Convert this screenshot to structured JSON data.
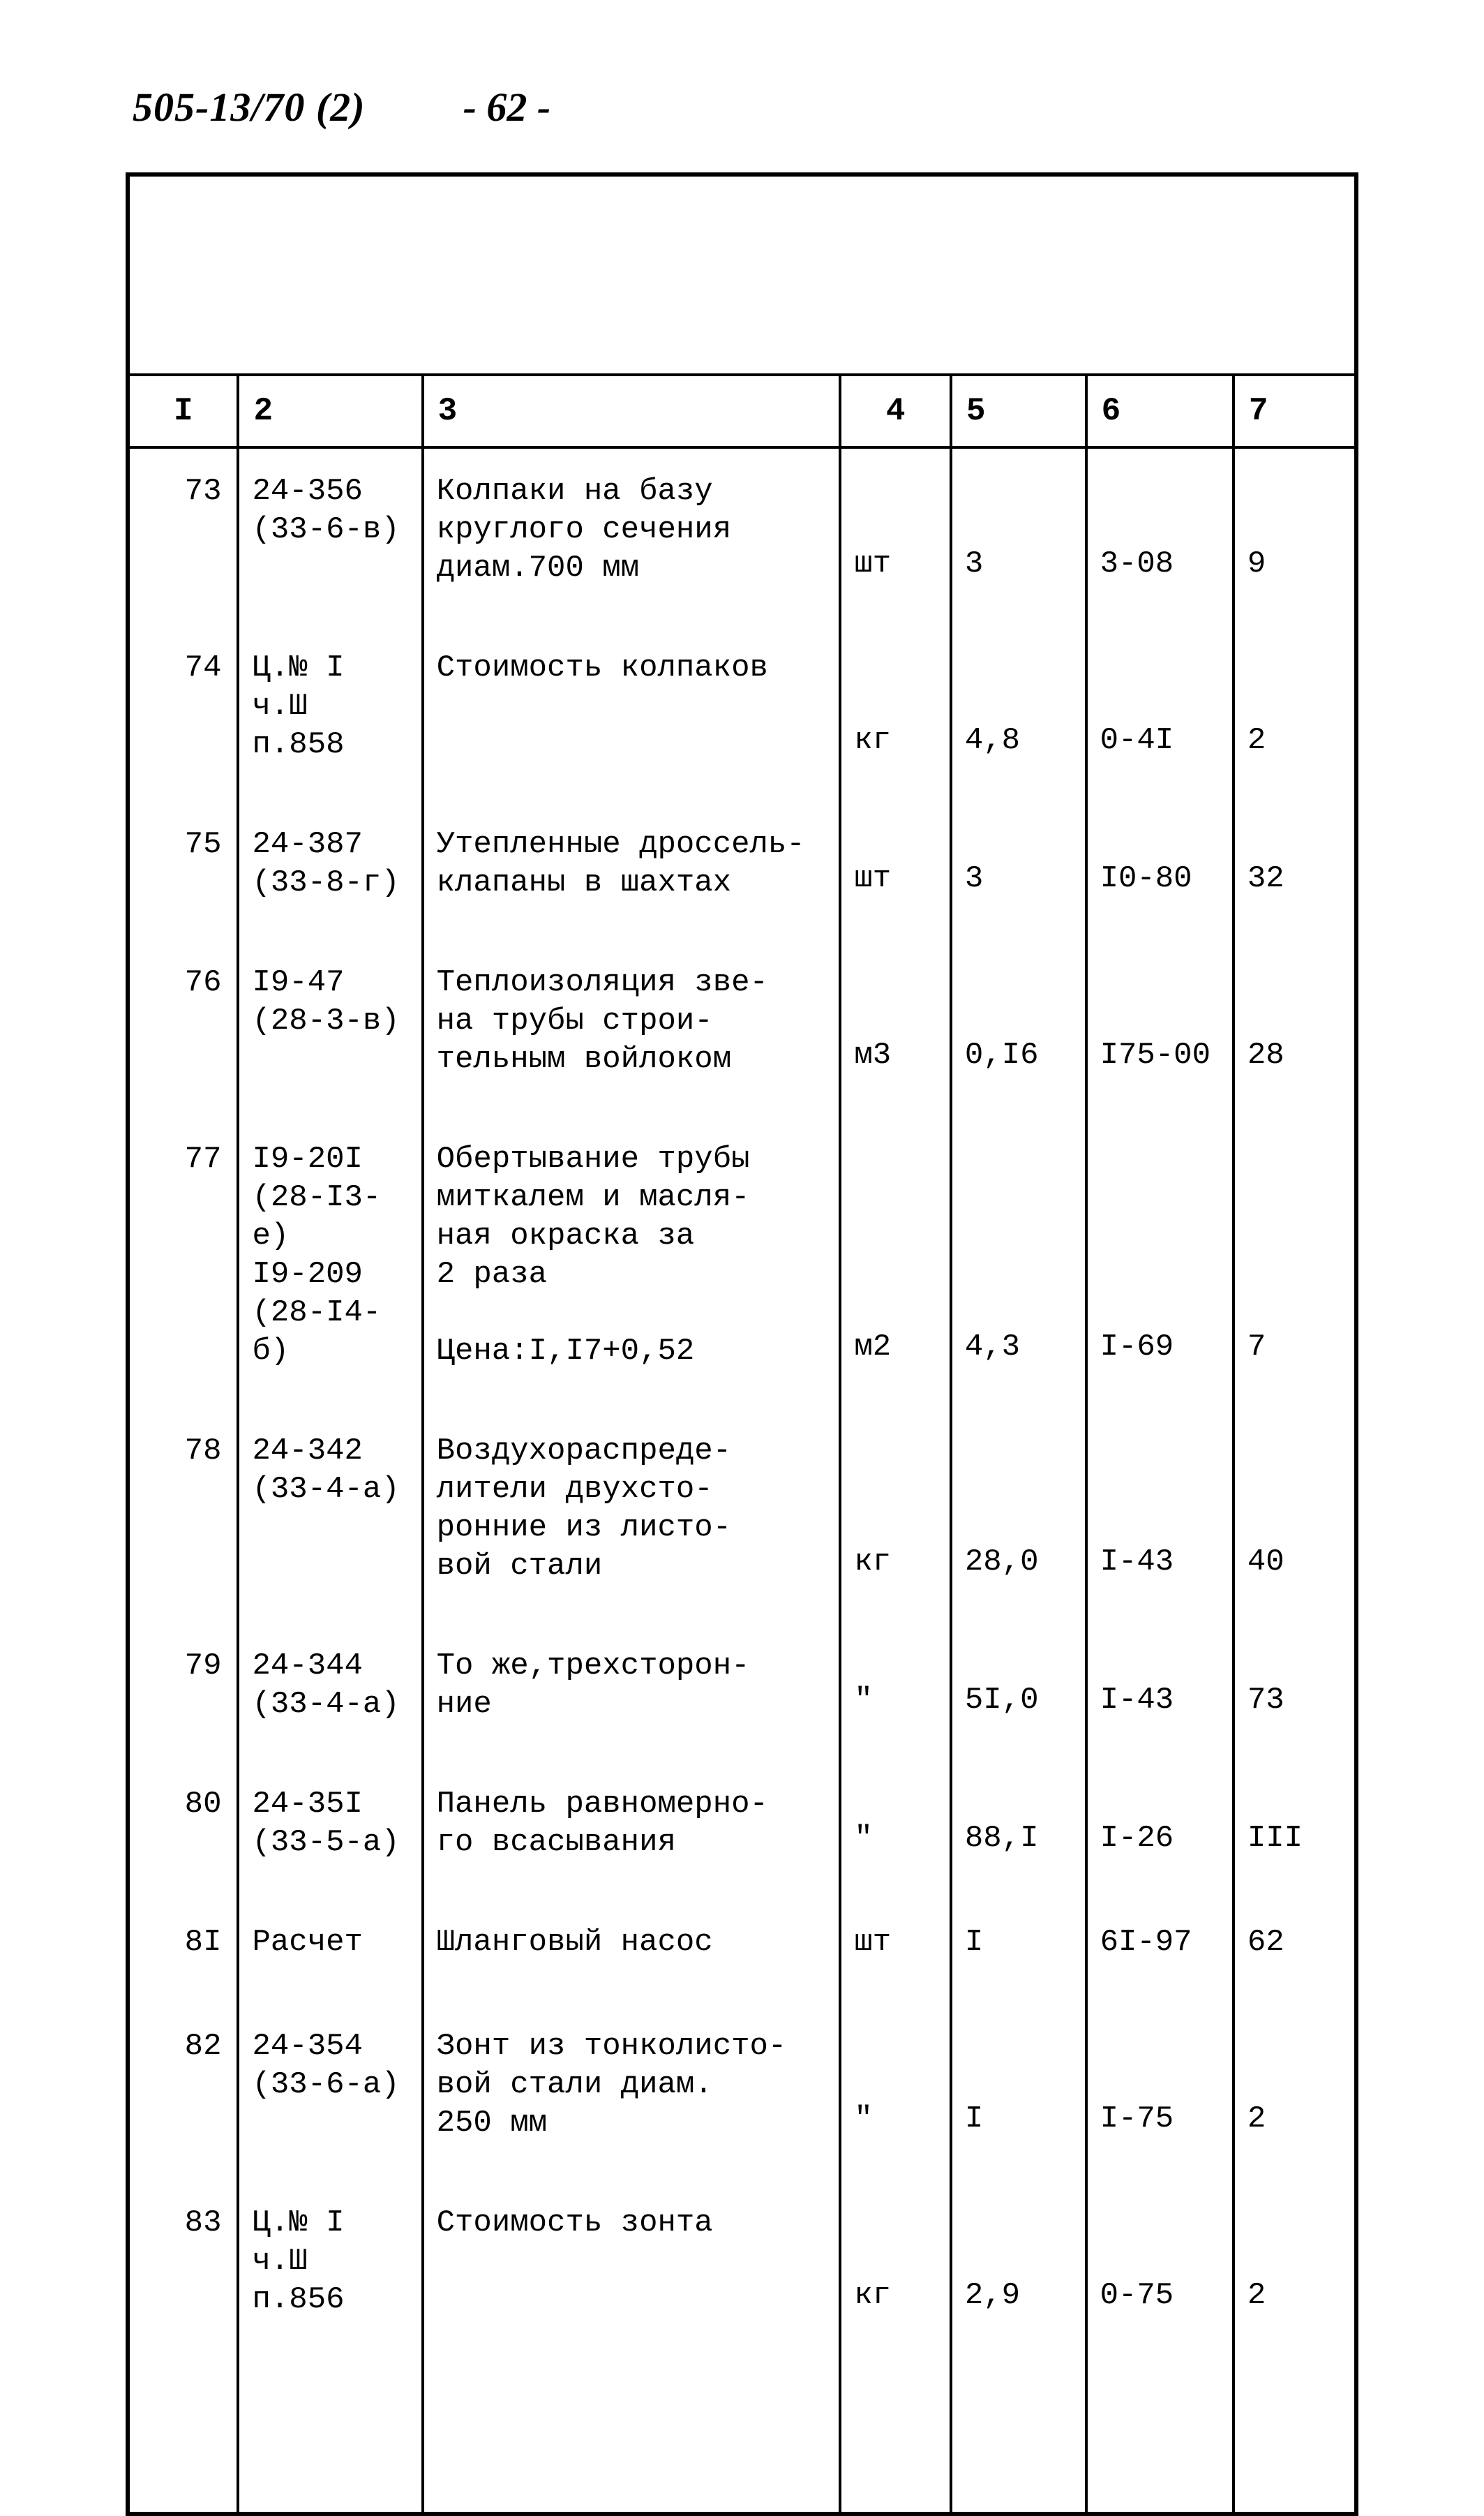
{
  "header": {
    "doc_ref": "505-13/70  (2)",
    "page_num": "- 62 -"
  },
  "table": {
    "columns": [
      "I",
      "2",
      "3",
      "4",
      "5",
      "6",
      "7"
    ],
    "rows": [
      {
        "c1": "73",
        "c2": "24-356\n(33-6-в)",
        "c3": "Колпаки на базу\nкруглого сечения\nдиам.700 мм",
        "c4": "шт",
        "c5": "3",
        "c6": "3-08",
        "c7": "9"
      },
      {
        "c1": "74",
        "c2": "Ц.№ I\nч.Ш\nп.858",
        "c3": "Стоимость колпаков",
        "c4": "кг",
        "c5": "4,8",
        "c6": "0-4I",
        "c7": "2"
      },
      {
        "c1": "75",
        "c2": "24-387\n(33-8-г)",
        "c3": "Утепленные дроссель-\nклапаны в шахтах",
        "c4": "шт",
        "c5": "3",
        "c6": "I0-80",
        "c7": "32"
      },
      {
        "c1": "76",
        "c2": "I9-47\n(28-3-в)",
        "c3": "Теплоизоляция зве-\nна трубы строи-\nтельным войлоком",
        "c4": "м3",
        "c5": "0,I6",
        "c6": "I75-00",
        "c7": "28"
      },
      {
        "c1": "77",
        "c2": "I9-20I\n(28-I3-е)\nI9-209\n(28-I4-б)",
        "c3": "Обертывание трубы\nмиткалем и масля-\nная окраска за\n2 раза\n\nЦена:I,I7+0,52",
        "c4": "м2",
        "c5": "4,3",
        "c6": "I-69",
        "c7": "7"
      },
      {
        "c1": "78",
        "c2": "24-342\n(33-4-а)",
        "c3": "Воздухораспреде-\nлители двухсто-\nронние из листо-\nвой стали",
        "c4": "кг",
        "c5": "28,0",
        "c6": "I-43",
        "c7": "40"
      },
      {
        "c1": "79",
        "c2": "24-344\n(33-4-а)",
        "c3": "То же,трехсторон-\nние",
        "c4": "\"",
        "c5": "5I,0",
        "c6": "I-43",
        "c7": "73"
      },
      {
        "c1": "80",
        "c2": "24-35I\n(33-5-а)",
        "c3": "Панель равномерно-\nго всасывания",
        "c4": "\"",
        "c5": "88,I",
        "c6": "I-26",
        "c7": "III"
      },
      {
        "c1": "8I",
        "c2": "Расчет",
        "c3": "Шланговый насос",
        "c4": "шт",
        "c5": "I",
        "c6": "6I-97",
        "c7": "62"
      },
      {
        "c1": "82",
        "c2": "24-354\n(33-6-а)",
        "c3": "Зонт из тонколисто-\nвой стали диам.\n250 мм",
        "c4": "\"",
        "c5": "I",
        "c6": "I-75",
        "c7": "2"
      },
      {
        "c1": "83",
        "c2": "Ц.№ I\nч.Ш\nп.856",
        "c3": "Стоимость зонта",
        "c4": "кг",
        "c5": "2,9",
        "c6": "0-75",
        "c7": "2"
      }
    ]
  }
}
